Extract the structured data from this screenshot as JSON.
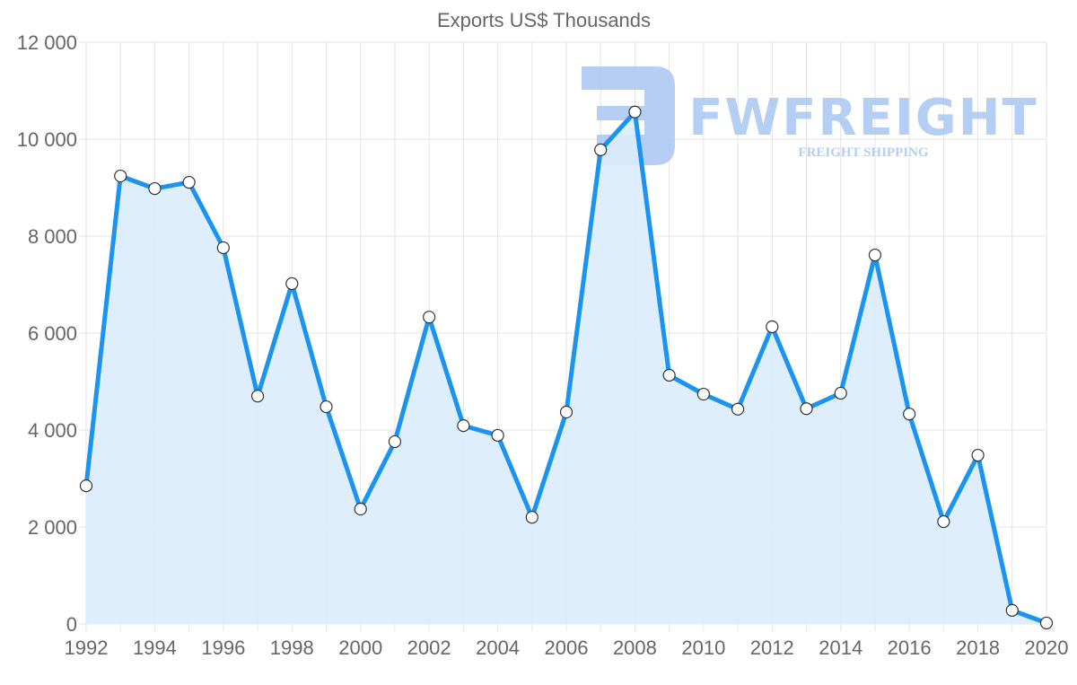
{
  "chart_data": {
    "type": "line",
    "title": "Exports US$ Thousands",
    "xlabel": "",
    "ylabel": "",
    "x": [
      1992,
      1993,
      1994,
      1995,
      1996,
      1997,
      1998,
      1999,
      2000,
      2001,
      2002,
      2003,
      2004,
      2005,
      2006,
      2007,
      2008,
      2009,
      2010,
      2011,
      2012,
      2013,
      2014,
      2015,
      2016,
      2017,
      2018,
      2019,
      2020
    ],
    "series": [
      {
        "name": "Exports US$ Thousands",
        "values": [
          2850,
          9240,
          8980,
          9110,
          7760,
          4700,
          7020,
          4480,
          2370,
          3760,
          6330,
          4090,
          3890,
          2200,
          4370,
          9780,
          10560,
          5130,
          4740,
          4430,
          6130,
          4440,
          4760,
          7610,
          4330,
          2110,
          3480,
          280,
          20
        ]
      }
    ],
    "xlim": [
      1992,
      2020
    ],
    "ylim": [
      0,
      12000
    ],
    "yticks": [
      0,
      2000,
      4000,
      6000,
      8000,
      10000,
      12000
    ],
    "ytick_labels": [
      "0",
      "2 000",
      "4 000",
      "6 000",
      "8 000",
      "10 000",
      "12 000"
    ],
    "xtick_labels": [
      "1992",
      "1994",
      "1996",
      "1998",
      "2000",
      "2002",
      "2004",
      "2006",
      "2008",
      "2010",
      "2012",
      "2014",
      "2016",
      "2018",
      "2020"
    ],
    "grid": true,
    "filled": true,
    "colors": {
      "line": "#1a94f0",
      "fill": "#daecfc",
      "grid": "#e3e3e3",
      "watermark": "#a9c6f2"
    }
  },
  "watermark": {
    "brand": "FWFREIGHT",
    "tagline": "FREIGHT SHIPPING"
  }
}
